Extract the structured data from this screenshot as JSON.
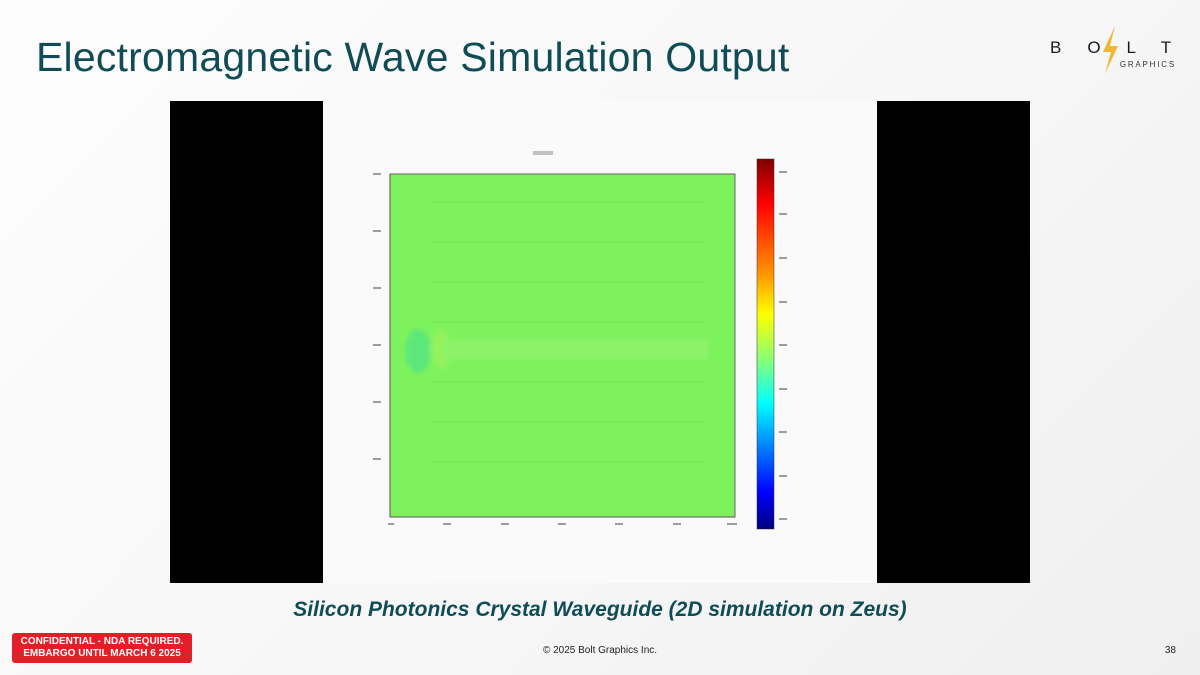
{
  "slide": {
    "title": "Electromagnetic Wave Simulation Output",
    "caption": "Silicon Photonics Crystal Waveguide (2D simulation on Zeus)",
    "page_number": "38"
  },
  "logo": {
    "wordmark": "BOLT",
    "subtitle": "GRAPHICS",
    "accent_color": "#f2b632"
  },
  "footer": {
    "confidential_line1": "CONFIDENTIAL - NDA REQUIRED.",
    "confidential_line2": "EMBARGO UNTIL MARCH 6 2025",
    "copyright": "© 2025 Bolt Graphics Inc.",
    "badge_color": "#e21f26"
  },
  "simulation_plot": {
    "field_color": "#7df25d",
    "colormap": "jet",
    "colorbar_stops": [
      "#7f0000",
      "#ff0000",
      "#ff7f00",
      "#ffff00",
      "#7fff7f",
      "#00ffff",
      "#007fff",
      "#0000ff",
      "#00007f"
    ]
  },
  "theme": {
    "title_color": "#0f4c56"
  }
}
